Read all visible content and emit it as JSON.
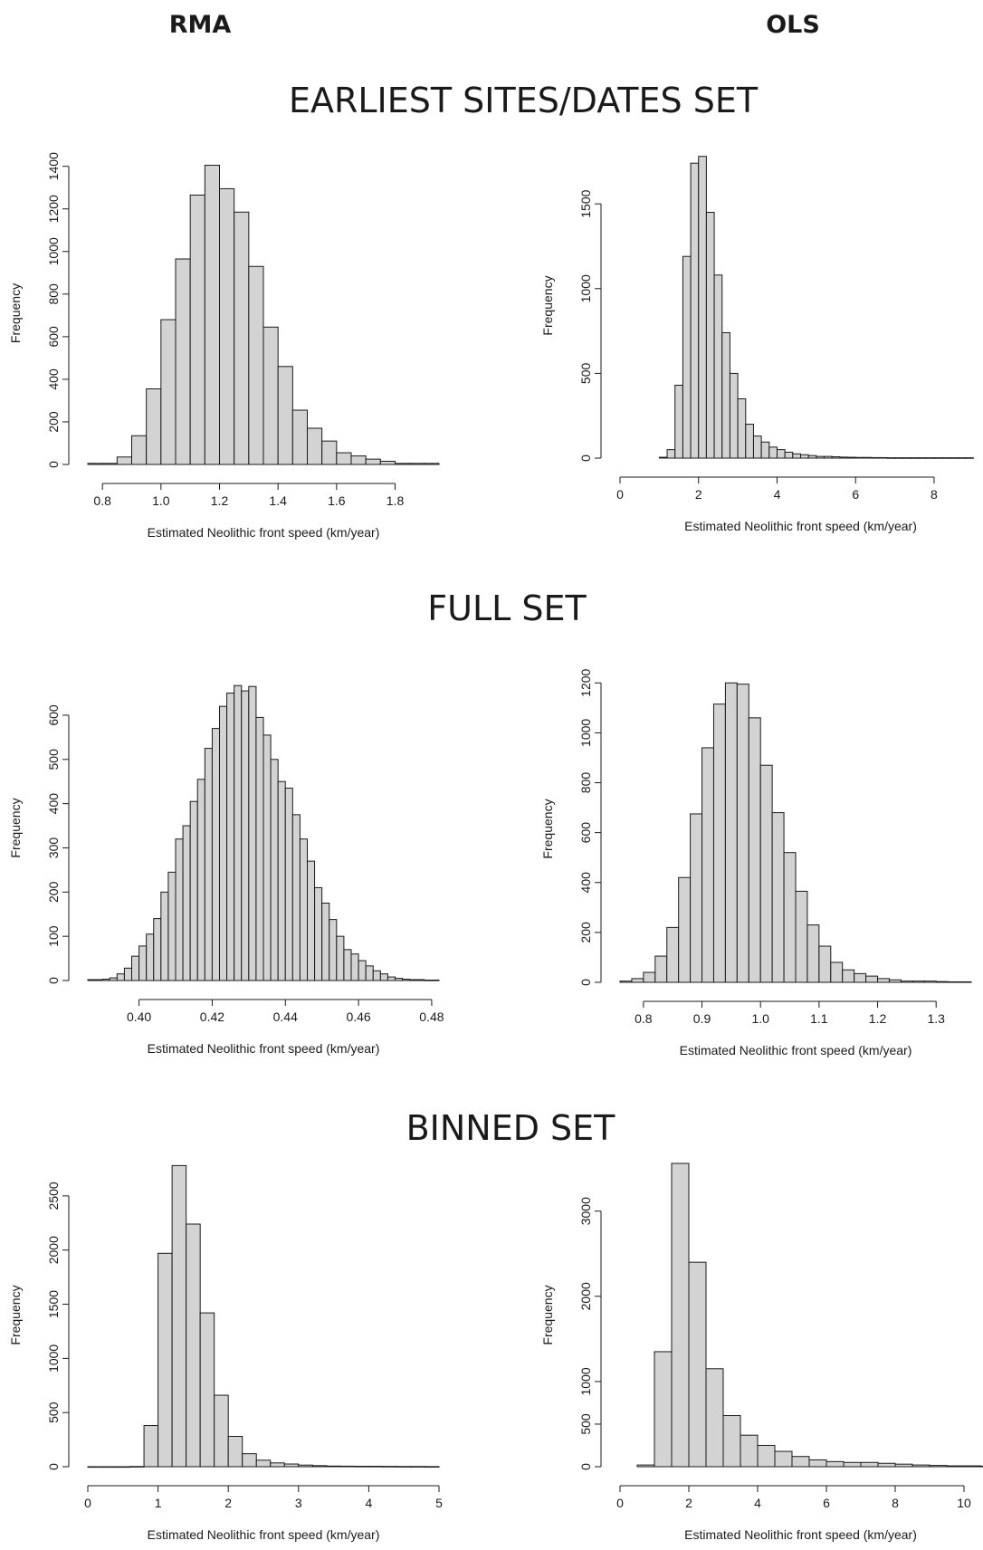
{
  "figure": {
    "col_headers": [
      "RMA",
      "OLS"
    ],
    "sections": [
      "EARLIEST SITES/DATES SET",
      "FULL SET",
      "BINNED SET"
    ]
  },
  "chart_data": [
    {
      "type": "bar",
      "section": "EARLIEST SITES/DATES SET",
      "method": "RMA",
      "xlabel": "Estimated Neolithic front speed (km/year)",
      "ylabel": "Frequency",
      "bin_start": 0.75,
      "bin_width": 0.05,
      "values": [
        5,
        5,
        35,
        135,
        355,
        680,
        965,
        1265,
        1405,
        1295,
        1185,
        930,
        645,
        460,
        255,
        170,
        110,
        55,
        40,
        25,
        15,
        5,
        5,
        5
      ],
      "xlim": [
        0.75,
        1.95
      ],
      "ylim": [
        0,
        1420
      ],
      "xticks": [
        0.8,
        1.0,
        1.2,
        1.4,
        1.6,
        1.8
      ],
      "yticks": [
        0,
        200,
        400,
        600,
        800,
        1000,
        1200,
        1400
      ],
      "xtick_labels": [
        "0.8",
        "1.0",
        "1.2",
        "1.4",
        "1.6",
        "1.8"
      ],
      "ytick_labels": [
        "0",
        "200",
        "400",
        "600",
        "800",
        "1000",
        "1200",
        "1400"
      ]
    },
    {
      "type": "bar",
      "section": "EARLIEST SITES/DATES SET",
      "method": "OLS",
      "xlabel": "Estimated Neolithic front speed (km/year)",
      "ylabel": "Frequency",
      "bin_start": 1.0,
      "bin_width": 0.2,
      "values": [
        5,
        50,
        430,
        1190,
        1740,
        1780,
        1450,
        1080,
        740,
        500,
        350,
        200,
        130,
        95,
        65,
        50,
        35,
        25,
        20,
        15,
        10,
        10,
        8,
        6,
        5,
        4,
        4,
        3,
        3,
        2,
        2,
        2,
        2,
        2,
        2,
        2,
        2,
        2,
        2,
        2
      ],
      "xlim": [
        0,
        9.2
      ],
      "ylim": [
        0,
        1800
      ],
      "xticks": [
        0,
        2,
        4,
        6,
        8
      ],
      "yticks": [
        0,
        500,
        1000,
        1500
      ],
      "xtick_labels": [
        "0",
        "2",
        "4",
        "6",
        "8"
      ],
      "ytick_labels": [
        "0",
        "500",
        "1000",
        "1500"
      ]
    },
    {
      "type": "bar",
      "section": "FULL SET",
      "method": "RMA",
      "xlabel": "Estimated Neolithic front speed (km/year)",
      "ylabel": "Frequency",
      "bin_start": 0.386,
      "bin_width": 0.002,
      "values": [
        2,
        2,
        3,
        6,
        15,
        28,
        55,
        78,
        105,
        140,
        200,
        245,
        320,
        350,
        405,
        455,
        525,
        570,
        620,
        650,
        667,
        655,
        665,
        595,
        555,
        500,
        450,
        435,
        375,
        320,
        270,
        210,
        175,
        138,
        100,
        70,
        60,
        45,
        33,
        22,
        15,
        8,
        5,
        3,
        2,
        2,
        1,
        1
      ],
      "xlim": [
        0.386,
        0.482
      ],
      "ylim": [
        0,
        690
      ],
      "xticks": [
        0.4,
        0.42,
        0.44,
        0.46,
        0.48
      ],
      "yticks": [
        0,
        100,
        200,
        300,
        400,
        500,
        600
      ],
      "xtick_labels": [
        "0.40",
        "0.42",
        "0.44",
        "0.46",
        "0.48"
      ],
      "ytick_labels": [
        "0",
        "100",
        "200",
        "300",
        "400",
        "500",
        "600"
      ]
    },
    {
      "type": "bar",
      "section": "FULL SET",
      "method": "OLS",
      "xlabel": "Estimated Neolithic front speed (km/year)",
      "ylabel": "Frequency",
      "bin_start": 0.76,
      "bin_width": 0.02,
      "values": [
        5,
        15,
        40,
        105,
        220,
        420,
        675,
        940,
        1115,
        1200,
        1195,
        1060,
        870,
        680,
        520,
        365,
        230,
        145,
        80,
        50,
        35,
        25,
        15,
        10,
        5,
        5,
        5,
        3,
        2,
        2
      ],
      "xlim": [
        0.76,
        1.36
      ],
      "ylim": [
        0,
        1230
      ],
      "xticks": [
        0.8,
        0.9,
        1.0,
        1.1,
        1.2,
        1.3
      ],
      "yticks": [
        0,
        200,
        400,
        600,
        800,
        1000,
        1200
      ],
      "xtick_labels": [
        "0.8",
        "0.9",
        "1.0",
        "1.1",
        "1.2",
        "1.3"
      ],
      "ytick_labels": [
        "0",
        "200",
        "400",
        "600",
        "800",
        "1000",
        "1200"
      ]
    },
    {
      "type": "bar",
      "section": "BINNED SET",
      "method": "RMA",
      "xlabel": "Estimated Neolithic front speed (km/year)",
      "ylabel": "Frequency",
      "bin_start": 0.0,
      "bin_width": 0.2,
      "values": [
        0,
        0,
        0,
        2,
        380,
        1970,
        2780,
        2240,
        1420,
        660,
        280,
        120,
        60,
        35,
        25,
        15,
        10,
        6,
        5,
        4,
        4,
        3,
        2,
        2,
        1
      ],
      "xlim": [
        0,
        5
      ],
      "ylim": [
        0,
        2800
      ],
      "xticks": [
        0,
        1,
        2,
        3,
        4,
        5
      ],
      "yticks": [
        0,
        500,
        1000,
        1500,
        2000,
        2500
      ],
      "xtick_labels": [
        "0",
        "1",
        "2",
        "3",
        "4",
        "5"
      ],
      "ytick_labels": [
        "0",
        "500",
        "1000",
        "1500",
        "2000",
        "2500"
      ]
    },
    {
      "type": "bar",
      "section": "BINNED SET",
      "method": "OLS",
      "xlabel": "Estimated Neolithic front speed (km/year)",
      "ylabel": "Frequency",
      "bin_start": 0.5,
      "bin_width": 0.5,
      "values": [
        20,
        1350,
        3560,
        2400,
        1150,
        600,
        370,
        250,
        180,
        120,
        80,
        60,
        50,
        50,
        40,
        30,
        20,
        15,
        10,
        10,
        5
      ],
      "xlim": [
        0,
        10.5
      ],
      "ylim": [
        0,
        3560
      ],
      "xticks": [
        0,
        2,
        4,
        6,
        8,
        10
      ],
      "yticks": [
        0,
        500,
        1000,
        2000,
        3000
      ],
      "xtick_labels": [
        "0",
        "2",
        "4",
        "6",
        "8",
        "10"
      ],
      "ytick_labels": [
        "0",
        "500",
        "1000",
        "2000",
        "3000"
      ]
    }
  ]
}
